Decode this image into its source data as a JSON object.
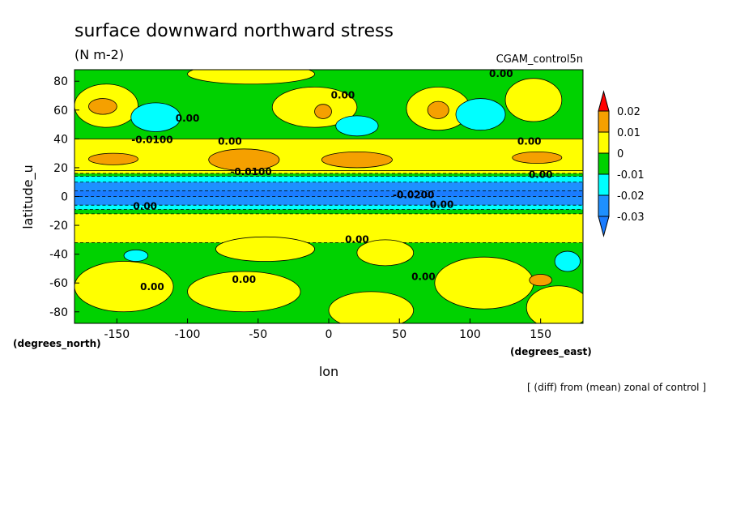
{
  "chart_data": {
    "type": "contour",
    "title": "surface downward northward stress",
    "subtitle": "(N m-2)",
    "run_name": "CGAM_control5n",
    "x_label": "lon",
    "y_label": "latitude_u",
    "x_units": "(degrees_east)",
    "y_units": "(degrees_north)",
    "note": "[ (diff) from (mean) zonal of control ]",
    "xlim": [
      -180,
      180
    ],
    "ylim": [
      -88,
      88
    ],
    "xticks": [
      -150,
      -100,
      -50,
      0,
      50,
      100,
      150
    ],
    "yticks": [
      -80,
      -60,
      -40,
      -20,
      0,
      20,
      40,
      60,
      80
    ],
    "levels": [
      -0.03,
      -0.02,
      -0.01,
      0,
      0.01,
      0.02
    ],
    "colors": [
      "#1a7cff",
      "#1e90ff",
      "#00ffff",
      "#00d200",
      "#ffff00",
      "#f5a000",
      "#ff0000"
    ],
    "background_value": 0.005,
    "patches": [
      {
        "shape": "rect",
        "value": -0.005,
        "lon": [
          -180,
          180
        ],
        "lat": [
          40,
          88
        ]
      },
      {
        "shape": "ellipse",
        "value": 0.005,
        "lon": [
          -180,
          -135
        ],
        "lat": [
          48,
          78
        ]
      },
      {
        "shape": "ellipse",
        "value": 0.005,
        "lon": [
          -40,
          20
        ],
        "lat": [
          48,
          76
        ]
      },
      {
        "shape": "ellipse",
        "value": 0.005,
        "lon": [
          55,
          100
        ],
        "lat": [
          46,
          76
        ]
      },
      {
        "shape": "ellipse",
        "value": 0.005,
        "lon": [
          125,
          165
        ],
        "lat": [
          52,
          82
        ]
      },
      {
        "shape": "ellipse",
        "value": 0.005,
        "lon": [
          -100,
          -10
        ],
        "lat": [
          78,
          92
        ]
      },
      {
        "shape": "ellipse",
        "value": 0.015,
        "lon": [
          -170,
          -150
        ],
        "lat": [
          57,
          68
        ]
      },
      {
        "shape": "ellipse",
        "value": 0.015,
        "lon": [
          70,
          85
        ],
        "lat": [
          54,
          66
        ]
      },
      {
        "shape": "ellipse",
        "value": 0.015,
        "lon": [
          -10,
          2
        ],
        "lat": [
          54,
          64
        ]
      },
      {
        "shape": "ellipse",
        "value": -0.015,
        "lon": [
          -140,
          -105
        ],
        "lat": [
          45,
          65
        ]
      },
      {
        "shape": "ellipse",
        "value": -0.015,
        "lon": [
          5,
          35
        ],
        "lat": [
          42,
          56
        ]
      },
      {
        "shape": "ellipse",
        "value": -0.015,
        "lon": [
          90,
          125
        ],
        "lat": [
          46,
          68
        ]
      },
      {
        "shape": "rect",
        "value": 0.005,
        "lon": [
          -180,
          180
        ],
        "lat": [
          18,
          40
        ]
      },
      {
        "shape": "ellipse",
        "value": 0.015,
        "lon": [
          -170,
          -135
        ],
        "lat": [
          22,
          30
        ]
      },
      {
        "shape": "ellipse",
        "value": 0.015,
        "lon": [
          -85,
          -35
        ],
        "lat": [
          18,
          33
        ]
      },
      {
        "shape": "ellipse",
        "value": 0.015,
        "lon": [
          -5,
          45
        ],
        "lat": [
          20,
          31
        ]
      },
      {
        "shape": "ellipse",
        "value": 0.015,
        "lon": [
          130,
          165
        ],
        "lat": [
          23,
          31
        ]
      },
      {
        "shape": "rect",
        "value": -0.005,
        "lon": [
          -180,
          180
        ],
        "lat": [
          -12,
          16
        ]
      },
      {
        "shape": "rect",
        "value": -0.015,
        "lon": [
          -180,
          180
        ],
        "lat": [
          -9,
          14
        ]
      },
      {
        "shape": "rect",
        "value": -0.025,
        "lon": [
          -180,
          180
        ],
        "lat": [
          -6,
          10
        ]
      },
      {
        "shape": "rect",
        "value": -0.035,
        "lon": [
          -180,
          180
        ],
        "lat": [
          0,
          4
        ]
      },
      {
        "shape": "rect",
        "value": -0.005,
        "lon": [
          -180,
          180
        ],
        "lat": [
          -88,
          -32
        ]
      },
      {
        "shape": "ellipse",
        "value": 0.005,
        "lon": [
          -180,
          -110
        ],
        "lat": [
          -80,
          -45
        ]
      },
      {
        "shape": "ellipse",
        "value": 0.005,
        "lon": [
          -100,
          -20
        ],
        "lat": [
          -80,
          -52
        ]
      },
      {
        "shape": "ellipse",
        "value": 0.005,
        "lon": [
          0,
          60
        ],
        "lat": [
          -92,
          -66
        ]
      },
      {
        "shape": "ellipse",
        "value": 0.005,
        "lon": [
          75,
          145
        ],
        "lat": [
          -78,
          -42
        ]
      },
      {
        "shape": "ellipse",
        "value": 0.005,
        "lon": [
          140,
          185
        ],
        "lat": [
          -92,
          -62
        ]
      },
      {
        "shape": "ellipse",
        "value": 0.005,
        "lon": [
          -80,
          -10
        ],
        "lat": [
          -45,
          -28
        ]
      },
      {
        "shape": "ellipse",
        "value": 0.005,
        "lon": [
          20,
          60
        ],
        "lat": [
          -48,
          -30
        ]
      },
      {
        "shape": "ellipse",
        "value": -0.015,
        "lon": [
          -145,
          -128
        ],
        "lat": [
          -45,
          -37
        ]
      },
      {
        "shape": "ellipse",
        "value": -0.015,
        "lon": [
          160,
          178
        ],
        "lat": [
          -52,
          -38
        ]
      },
      {
        "shape": "ellipse",
        "value": 0.015,
        "lon": [
          142,
          158
        ],
        "lat": [
          -62,
          -54
        ]
      }
    ],
    "contour_labels": [
      {
        "text": "0.00",
        "lon": 10,
        "lat": 68
      },
      {
        "text": "0.00",
        "lon": -100,
        "lat": 52
      },
      {
        "text": "0.00",
        "lon": 122,
        "lat": 83
      },
      {
        "text": "-0.0100",
        "lon": -125,
        "lat": 37
      },
      {
        "text": "0.00",
        "lon": -70,
        "lat": 36
      },
      {
        "text": "0.00",
        "lon": 142,
        "lat": 36
      },
      {
        "text": "-0.0100",
        "lon": -55,
        "lat": 15
      },
      {
        "text": "0.00",
        "lon": 150,
        "lat": 13
      },
      {
        "text": "-0.0200",
        "lon": 60,
        "lat": -1
      },
      {
        "text": "0.00",
        "lon": -130,
        "lat": -9
      },
      {
        "text": "0.00",
        "lon": 80,
        "lat": -8
      },
      {
        "text": "0.00",
        "lon": 20,
        "lat": -32
      },
      {
        "text": "0.00",
        "lon": -60,
        "lat": -60
      },
      {
        "text": "0.00",
        "lon": 67,
        "lat": -58
      },
      {
        "text": "0.00",
        "lon": -125,
        "lat": -65
      }
    ]
  }
}
